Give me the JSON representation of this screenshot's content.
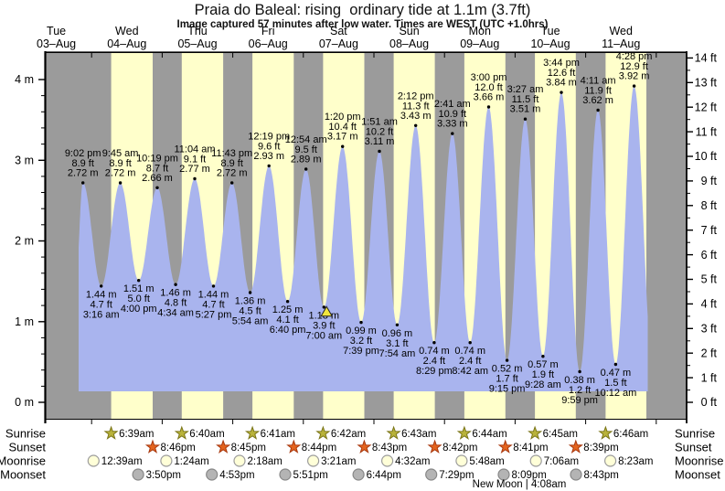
{
  "title": "Praia do Baleal: rising  ordinary tide at 1.1m (3.7ft)",
  "subtitle": "Image captured 57 minutes after low water. Times are WEST (UTC +1.0hrs)",
  "day_labels": [
    {
      "weekday": "Tue",
      "date": "03–Aug"
    },
    {
      "weekday": "Wed",
      "date": "04–Aug"
    },
    {
      "weekday": "Thu",
      "date": "05–Aug"
    },
    {
      "weekday": "Fri",
      "date": "06–Aug"
    },
    {
      "weekday": "Sat",
      "date": "07–Aug"
    },
    {
      "weekday": "Sun",
      "date": "08–Aug"
    },
    {
      "weekday": "Mon",
      "date": "09–Aug"
    },
    {
      "weekday": "Tue",
      "date": "10–Aug"
    },
    {
      "weekday": "Wed",
      "date": "11–Aug"
    }
  ],
  "axes": {
    "left_labels": [
      "0 m",
      "1 m",
      "2 m",
      "3 m",
      "4 m"
    ],
    "right_labels": [
      "0 ft",
      "1 ft",
      "2 ft",
      "3 ft",
      "4 ft",
      "5 ft",
      "6 ft",
      "7 ft",
      "8 ft",
      "9 ft",
      "10 ft",
      "11 ft",
      "12 ft",
      "13 ft",
      "14 ft"
    ]
  },
  "colors": {
    "band_night": "#9b9b9b",
    "band_day": "#ffffcb",
    "tide_fill": "#a9b4ee",
    "date_red": "#e84848",
    "sunrise_star": "#b9b33a",
    "sunrise_star_edge": "#7a7518",
    "sunset_star": "#e4641e",
    "sunset_star_edge": "#a8380e",
    "moonrise_fill": "#ffffd8",
    "moonrise_edge": "#9c9c9c",
    "moonset_fill": "#b4b4b4",
    "moonset_edge": "#878787",
    "marker_yellow": "#f2e53e"
  },
  "chart_data": {
    "type": "area",
    "title": "Tide curve for Praia do Baleal, 03-Aug to 11-Aug",
    "xlabel": "date/time (WEST)",
    "ylabel_left": "tide height (m)",
    "ylabel_right": "tide height (ft)",
    "ylim_m": [
      0,
      4
    ],
    "ylim_ft": [
      0,
      14
    ],
    "tide_extremes": [
      {
        "kind": "high",
        "day_index": 0,
        "time": "9:02 pm",
        "height_m": 2.72,
        "height_ft": 8.9
      },
      {
        "kind": "low",
        "day_index": 1,
        "time": "3:16 am",
        "height_m": 1.44,
        "height_ft": 4.7
      },
      {
        "kind": "high",
        "day_index": 1,
        "time": "9:45 am",
        "height_m": 2.72,
        "height_ft": 8.9
      },
      {
        "kind": "low",
        "day_index": 1,
        "time": "4:00 pm",
        "height_m": 1.51,
        "height_ft": 5.0
      },
      {
        "kind": "high",
        "day_index": 1,
        "time": "10:19 pm",
        "height_m": 2.66,
        "height_ft": 8.7
      },
      {
        "kind": "low",
        "day_index": 2,
        "time": "4:34 am",
        "height_m": 1.46,
        "height_ft": 4.8
      },
      {
        "kind": "high",
        "day_index": 2,
        "time": "11:04 am",
        "height_m": 2.77,
        "height_ft": 9.1
      },
      {
        "kind": "low",
        "day_index": 2,
        "time": "5:27 pm",
        "height_m": 1.44,
        "height_ft": 4.7
      },
      {
        "kind": "high",
        "day_index": 2,
        "time": "11:43 pm",
        "height_m": 2.72,
        "height_ft": 8.9
      },
      {
        "kind": "low",
        "day_index": 3,
        "time": "5:54 am",
        "height_m": 1.36,
        "height_ft": 4.5
      },
      {
        "kind": "high",
        "day_index": 3,
        "time": "12:19 pm",
        "height_m": 2.93,
        "height_ft": 9.6
      },
      {
        "kind": "low",
        "day_index": 3,
        "time": "6:40 pm",
        "height_m": 1.25,
        "height_ft": 4.1
      },
      {
        "kind": "high",
        "day_index": 4,
        "time": "12:54 am",
        "height_m": 2.89,
        "height_ft": 9.5
      },
      {
        "kind": "low",
        "day_index": 4,
        "time": "7:00 am",
        "height_m": 1.18,
        "height_ft": 3.9
      },
      {
        "kind": "high",
        "day_index": 4,
        "time": "1:20 pm",
        "height_m": 3.17,
        "height_ft": 10.4
      },
      {
        "kind": "low",
        "day_index": 4,
        "time": "7:39 pm",
        "height_m": 0.99,
        "height_ft": 3.2
      },
      {
        "kind": "high",
        "day_index": 5,
        "time": "1:51 am",
        "height_m": 3.11,
        "height_ft": 10.2
      },
      {
        "kind": "low",
        "day_index": 5,
        "time": "7:54 am",
        "height_m": 0.96,
        "height_ft": 3.1
      },
      {
        "kind": "high",
        "day_index": 5,
        "time": "2:12 pm",
        "height_m": 3.43,
        "height_ft": 11.3
      },
      {
        "kind": "low",
        "day_index": 5,
        "time": "8:29 pm",
        "height_m": 0.74,
        "height_ft": 2.4
      },
      {
        "kind": "high",
        "day_index": 6,
        "time": "2:41 am",
        "height_m": 3.33,
        "height_ft": 10.9
      },
      {
        "kind": "low",
        "day_index": 6,
        "time": "8:42 am",
        "height_m": 0.74,
        "height_ft": 2.4
      },
      {
        "kind": "high",
        "day_index": 6,
        "time": "3:00 pm",
        "height_m": 3.66,
        "height_ft": 12.0
      },
      {
        "kind": "low",
        "day_index": 6,
        "time": "9:15 pm",
        "height_m": 0.52,
        "height_ft": 1.7
      },
      {
        "kind": "high",
        "day_index": 7,
        "time": "3:27 am",
        "height_m": 3.51,
        "height_ft": 11.5
      },
      {
        "kind": "low",
        "day_index": 7,
        "time": "9:28 am",
        "height_m": 0.57,
        "height_ft": 1.9
      },
      {
        "kind": "high",
        "day_index": 7,
        "time": "3:44 pm",
        "height_m": 3.84,
        "height_ft": 12.6
      },
      {
        "kind": "low",
        "day_index": 7,
        "time": "9:59 pm",
        "height_m": 0.38,
        "height_ft": 1.2
      },
      {
        "kind": "high",
        "day_index": 8,
        "time": "4:11 am",
        "height_m": 3.62,
        "height_ft": 11.9
      },
      {
        "kind": "low",
        "day_index": 8,
        "time": "10:12 am",
        "height_m": 0.47,
        "height_ft": 1.5
      },
      {
        "kind": "high",
        "day_index": 8,
        "time": "4:28 pm",
        "height_m": 3.92,
        "height_ft": 12.9
      }
    ],
    "current_marker": {
      "day_index": 4,
      "hour": 7.9,
      "height_m": 1.12
    }
  },
  "sun_moon": {
    "row_labels": [
      "Sunrise",
      "Sunset",
      "Moonrise",
      "Moonset"
    ],
    "sunrise": [
      {
        "day_index": 1,
        "time": "6:39am"
      },
      {
        "day_index": 2,
        "time": "6:40am"
      },
      {
        "day_index": 3,
        "time": "6:41am"
      },
      {
        "day_index": 4,
        "time": "6:42am"
      },
      {
        "day_index": 5,
        "time": "6:43am"
      },
      {
        "day_index": 6,
        "time": "6:44am"
      },
      {
        "day_index": 7,
        "time": "6:45am"
      },
      {
        "day_index": 8,
        "time": "6:46am"
      }
    ],
    "sunset": [
      {
        "day_index": 1,
        "time": "8:46pm"
      },
      {
        "day_index": 2,
        "time": "8:45pm"
      },
      {
        "day_index": 3,
        "time": "8:44pm"
      },
      {
        "day_index": 4,
        "time": "8:43pm"
      },
      {
        "day_index": 5,
        "time": "8:42pm"
      },
      {
        "day_index": 6,
        "time": "8:41pm"
      },
      {
        "day_index": 7,
        "time": "8:39pm"
      }
    ],
    "moonrise": [
      {
        "day_index": 1,
        "time": "12:39am"
      },
      {
        "day_index": 2,
        "time": "1:24am"
      },
      {
        "day_index": 3,
        "time": "2:18am"
      },
      {
        "day_index": 4,
        "time": "3:21am"
      },
      {
        "day_index": 5,
        "time": "4:32am"
      },
      {
        "day_index": 6,
        "time": "5:48am"
      },
      {
        "day_index": 7,
        "time": "7:06am"
      },
      {
        "day_index": 8,
        "time": "8:23am"
      }
    ],
    "moonset": [
      {
        "day_index": 1,
        "time": "3:50pm"
      },
      {
        "day_index": 2,
        "time": "4:53pm"
      },
      {
        "day_index": 3,
        "time": "5:51pm"
      },
      {
        "day_index": 4,
        "time": "6:44pm"
      },
      {
        "day_index": 5,
        "time": "7:29pm"
      },
      {
        "day_index": 6,
        "time": "8:09pm"
      },
      {
        "day_index": 7,
        "time": "8:43pm"
      }
    ],
    "moon_phase": "New Moon | 4:08am"
  }
}
